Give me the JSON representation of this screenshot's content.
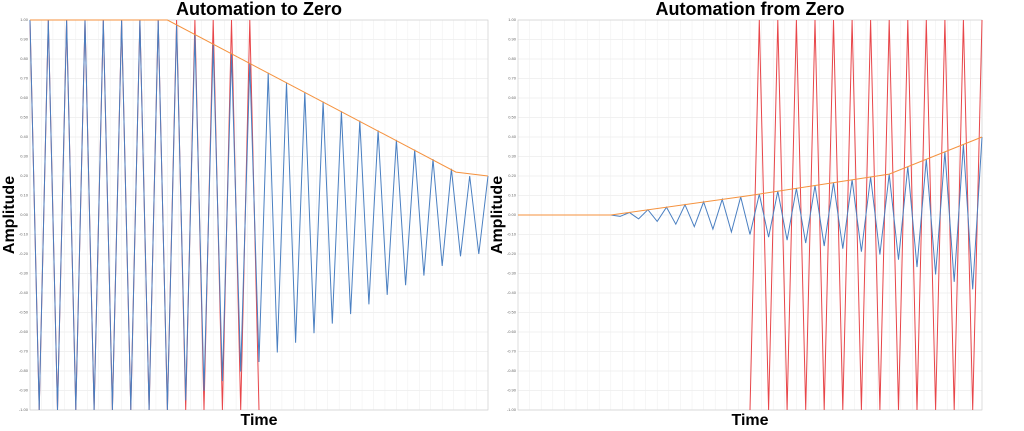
{
  "chart_data": [
    {
      "type": "line",
      "title": "Automation to Zero",
      "xlabel": "Time",
      "ylabel": "Amplitude",
      "xlim": [
        0,
        100
      ],
      "ylim": [
        -1,
        1
      ],
      "grid": true,
      "yticks": [
        {
          "value": -1,
          "label": "-1.00"
        },
        {
          "value": -0.9,
          "label": "-0.90"
        },
        {
          "value": -0.8,
          "label": "-0.80"
        },
        {
          "value": -0.7,
          "label": "-0.70"
        },
        {
          "value": -0.6,
          "label": "-0.60"
        },
        {
          "value": -0.5,
          "label": "-0.50"
        },
        {
          "value": -0.4,
          "label": "-0.40"
        },
        {
          "value": -0.3,
          "label": "-0.30"
        },
        {
          "value": -0.2,
          "label": "-0.20"
        },
        {
          "value": -0.1,
          "label": "-0.10"
        },
        {
          "value": 0,
          "label": "0.00"
        },
        {
          "value": 0.1,
          "label": "0.10"
        },
        {
          "value": 0.2,
          "label": "0.20"
        },
        {
          "value": 0.3,
          "label": "0.30"
        },
        {
          "value": 0.4,
          "label": "0.40"
        },
        {
          "value": 0.5,
          "label": "0.50"
        },
        {
          "value": 0.6,
          "label": "0.60"
        },
        {
          "value": 0.7,
          "label": "0.70"
        },
        {
          "value": 0.8,
          "label": "0.80"
        },
        {
          "value": 0.9,
          "label": "0.90"
        },
        {
          "value": 1,
          "label": "1.00"
        }
      ],
      "series": [
        {
          "color": "#e8464a",
          "x": [
            0,
            2,
            4,
            6,
            8,
            10,
            12,
            14,
            16,
            18,
            20,
            22,
            24,
            26,
            28,
            30,
            32,
            34,
            36,
            38,
            40,
            42,
            44,
            46,
            48,
            50
          ],
          "values": [
            1,
            -1,
            1,
            -1,
            1,
            -1,
            1,
            -1,
            1,
            -1,
            1,
            -1,
            1,
            -1,
            1,
            -1,
            1,
            -1,
            1,
            -1,
            1,
            -1,
            1,
            -1,
            1,
            -1
          ]
        },
        {
          "color": "#4a7fc1",
          "x": [
            0,
            2,
            4,
            6,
            8,
            10,
            12,
            14,
            16,
            18,
            20,
            22,
            24,
            26,
            28,
            30,
            32,
            34,
            36,
            38,
            40,
            42,
            44,
            46,
            48,
            50,
            52,
            54,
            56,
            58,
            60,
            62,
            64,
            66,
            68,
            70,
            72,
            74,
            76,
            78,
            80,
            82,
            84,
            86,
            88,
            90,
            92,
            94,
            96,
            98,
            100
          ],
          "values": [
            1,
            -1,
            1,
            -1,
            1,
            -1,
            1,
            -1,
            1,
            -1,
            1,
            -1,
            1,
            -1,
            1,
            -1,
            0.975,
            -0.951,
            0.926,
            -0.902,
            0.877,
            -0.852,
            0.828,
            -0.803,
            0.778,
            -0.754,
            0.729,
            -0.705,
            0.68,
            -0.655,
            0.631,
            -0.606,
            0.582,
            -0.557,
            0.532,
            -0.508,
            0.483,
            -0.458,
            0.434,
            -0.409,
            0.385,
            -0.36,
            0.335,
            -0.311,
            0.286,
            -0.261,
            0.237,
            -0.212,
            0.2,
            -0.2,
            0.2
          ]
        },
        {
          "color": "#f5923e",
          "x": [
            0,
            30,
            93,
            100
          ],
          "values": [
            1,
            1,
            0.22,
            0.2
          ]
        }
      ]
    },
    {
      "type": "line",
      "title": "Automation from Zero",
      "xlabel": "Time",
      "ylabel": "Amplitude",
      "xlim": [
        0,
        100
      ],
      "ylim": [
        -1,
        1
      ],
      "grid": true,
      "yticks": [
        {
          "value": -1,
          "label": "-1.00"
        },
        {
          "value": -0.9,
          "label": "-0.90"
        },
        {
          "value": -0.8,
          "label": "-0.80"
        },
        {
          "value": -0.7,
          "label": "-0.70"
        },
        {
          "value": -0.6,
          "label": "-0.60"
        },
        {
          "value": -0.5,
          "label": "-0.50"
        },
        {
          "value": -0.4,
          "label": "-0.40"
        },
        {
          "value": -0.3,
          "label": "-0.30"
        },
        {
          "value": -0.2,
          "label": "-0.20"
        },
        {
          "value": -0.1,
          "label": "-0.10"
        },
        {
          "value": 0,
          "label": "0.00"
        },
        {
          "value": 0.1,
          "label": "0.10"
        },
        {
          "value": 0.2,
          "label": "0.20"
        },
        {
          "value": 0.3,
          "label": "0.30"
        },
        {
          "value": 0.4,
          "label": "0.40"
        },
        {
          "value": 0.5,
          "label": "0.50"
        },
        {
          "value": 0.6,
          "label": "0.60"
        },
        {
          "value": 0.7,
          "label": "0.70"
        },
        {
          "value": 0.8,
          "label": "0.80"
        },
        {
          "value": 0.9,
          "label": "0.90"
        },
        {
          "value": 1,
          "label": "1.00"
        }
      ],
      "series": [
        {
          "color": "#e8464a",
          "x": [
            50,
            52,
            54,
            56,
            58,
            60,
            62,
            64,
            66,
            68,
            70,
            72,
            74,
            76,
            78,
            80,
            82,
            84,
            86,
            88,
            90,
            92,
            94,
            96,
            98,
            100
          ],
          "values": [
            -1,
            1,
            -1,
            1,
            -1,
            1,
            -1,
            1,
            -1,
            1,
            -1,
            1,
            -1,
            1,
            -1,
            1,
            -1,
            1,
            -1,
            1,
            -1,
            1,
            -1,
            1,
            -1,
            1
          ]
        },
        {
          "color": "#4a7fc1",
          "x": [
            0,
            20,
            22,
            24,
            26,
            28,
            30,
            32,
            34,
            36,
            38,
            40,
            42,
            44,
            46,
            48,
            50,
            52,
            54,
            56,
            58,
            60,
            62,
            64,
            66,
            68,
            70,
            72,
            74,
            76,
            78,
            80,
            82,
            84,
            86,
            88,
            90,
            92,
            94,
            96,
            98,
            100
          ],
          "values": [
            0,
            0,
            -0.007,
            0.013,
            -0.02,
            0.027,
            -0.033,
            0.04,
            -0.047,
            0.053,
            -0.06,
            0.067,
            -0.073,
            0.08,
            -0.087,
            0.093,
            -0.1,
            0.107,
            -0.114,
            0.122,
            -0.129,
            0.137,
            -0.144,
            0.151,
            -0.159,
            0.166,
            -0.173,
            0.181,
            -0.188,
            0.195,
            -0.203,
            0.21,
            -0.229,
            0.248,
            -0.267,
            0.286,
            -0.305,
            0.324,
            -0.343,
            0.362,
            -0.381,
            0.4
          ]
        },
        {
          "color": "#f5923e",
          "x": [
            0,
            20,
            50,
            80,
            100
          ],
          "values": [
            0,
            0,
            0.1,
            0.21,
            0.4
          ]
        }
      ]
    }
  ]
}
